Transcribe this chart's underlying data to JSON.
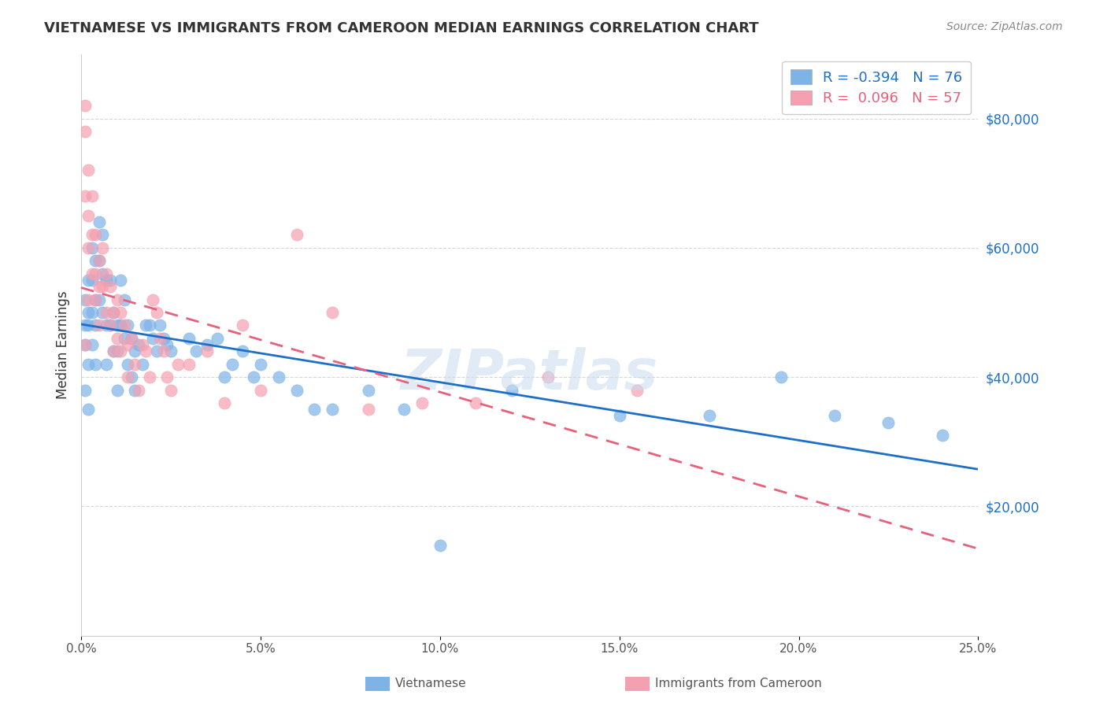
{
  "title": "VIETNAMESE VS IMMIGRANTS FROM CAMEROON MEDIAN EARNINGS CORRELATION CHART",
  "source": "Source: ZipAtlas.com",
  "ylabel": "Median Earnings",
  "ylabel_right_labels": [
    "$80,000",
    "$60,000",
    "$40,000",
    "$20,000"
  ],
  "ylabel_right_values": [
    80000,
    60000,
    40000,
    20000
  ],
  "legend_labels": [
    "Vietnamese",
    "Immigrants from Cameroon"
  ],
  "legend_r_values": [
    "R = -0.394",
    "R =  0.096"
  ],
  "legend_n_values": [
    "N = 76",
    "N = 57"
  ],
  "watermark": "ZIPatlas",
  "blue_color": "#7EB3E8",
  "pink_color": "#F4A0B0",
  "trend_blue": "#1E6FC8",
  "trend_pink": "#E8607A",
  "xlim": [
    0.0,
    0.25
  ],
  "ylim": [
    0,
    90000
  ],
  "blue_x": [
    0.001,
    0.001,
    0.001,
    0.001,
    0.002,
    0.002,
    0.002,
    0.002,
    0.002,
    0.003,
    0.003,
    0.003,
    0.003,
    0.004,
    0.004,
    0.004,
    0.004,
    0.005,
    0.005,
    0.005,
    0.006,
    0.006,
    0.006,
    0.007,
    0.007,
    0.007,
    0.008,
    0.008,
    0.009,
    0.009,
    0.01,
    0.01,
    0.01,
    0.011,
    0.011,
    0.012,
    0.012,
    0.013,
    0.013,
    0.014,
    0.014,
    0.015,
    0.015,
    0.016,
    0.017,
    0.018,
    0.019,
    0.02,
    0.021,
    0.022,
    0.023,
    0.024,
    0.025,
    0.03,
    0.032,
    0.035,
    0.038,
    0.04,
    0.042,
    0.045,
    0.048,
    0.05,
    0.055,
    0.06,
    0.065,
    0.07,
    0.08,
    0.09,
    0.1,
    0.12,
    0.15,
    0.175,
    0.195,
    0.21,
    0.225,
    0.24
  ],
  "blue_y": [
    48000,
    52000,
    45000,
    38000,
    55000,
    42000,
    48000,
    35000,
    50000,
    60000,
    55000,
    50000,
    45000,
    58000,
    52000,
    48000,
    42000,
    64000,
    58000,
    52000,
    62000,
    56000,
    50000,
    55000,
    48000,
    42000,
    55000,
    48000,
    50000,
    44000,
    48000,
    44000,
    38000,
    55000,
    48000,
    52000,
    46000,
    48000,
    42000,
    46000,
    40000,
    44000,
    38000,
    45000,
    42000,
    48000,
    48000,
    46000,
    44000,
    48000,
    46000,
    45000,
    44000,
    46000,
    44000,
    45000,
    46000,
    40000,
    42000,
    44000,
    40000,
    42000,
    40000,
    38000,
    35000,
    35000,
    38000,
    35000,
    14000,
    38000,
    34000,
    34000,
    40000,
    34000,
    33000,
    31000
  ],
  "pink_x": [
    0.001,
    0.001,
    0.001,
    0.001,
    0.002,
    0.002,
    0.002,
    0.002,
    0.003,
    0.003,
    0.003,
    0.004,
    0.004,
    0.004,
    0.005,
    0.005,
    0.005,
    0.006,
    0.006,
    0.007,
    0.007,
    0.008,
    0.008,
    0.009,
    0.009,
    0.01,
    0.01,
    0.011,
    0.011,
    0.012,
    0.013,
    0.013,
    0.014,
    0.015,
    0.016,
    0.017,
    0.018,
    0.019,
    0.02,
    0.021,
    0.022,
    0.023,
    0.024,
    0.025,
    0.027,
    0.03,
    0.035,
    0.04,
    0.045,
    0.05,
    0.06,
    0.07,
    0.08,
    0.095,
    0.11,
    0.13,
    0.155
  ],
  "pink_y": [
    82000,
    78000,
    68000,
    45000,
    72000,
    65000,
    60000,
    52000,
    68000,
    62000,
    56000,
    62000,
    56000,
    52000,
    58000,
    54000,
    48000,
    60000,
    54000,
    56000,
    50000,
    54000,
    48000,
    50000,
    44000,
    52000,
    46000,
    50000,
    44000,
    48000,
    45000,
    40000,
    46000,
    42000,
    38000,
    45000,
    44000,
    40000,
    52000,
    50000,
    46000,
    44000,
    40000,
    38000,
    42000,
    42000,
    44000,
    36000,
    48000,
    38000,
    62000,
    50000,
    35000,
    36000,
    36000,
    40000,
    38000
  ]
}
